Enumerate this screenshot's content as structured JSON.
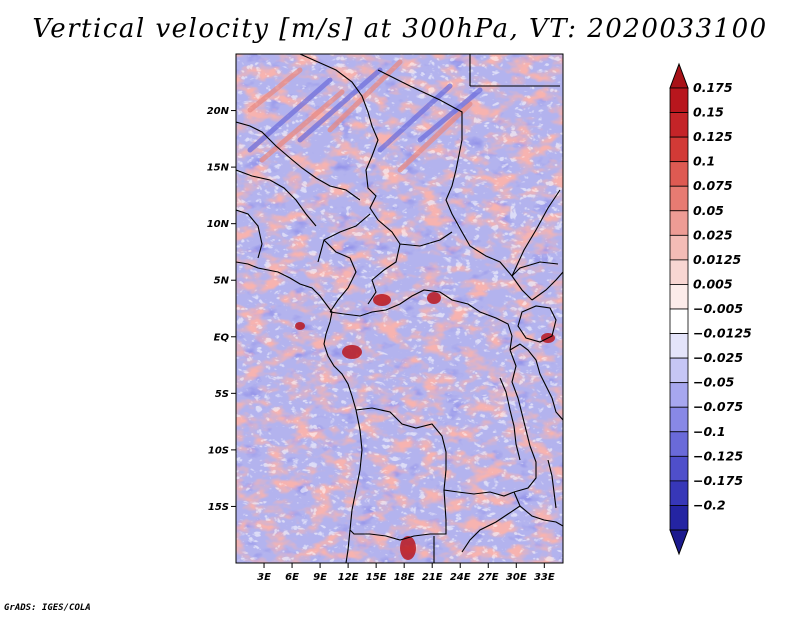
{
  "chart_data": {
    "type": "heatmap",
    "title": "Vertical velocity [m/s] at 300hPa, VT: 2020033100",
    "variable": "Vertical velocity",
    "units": "m/s",
    "level": "300hPa",
    "valid_time": "2020033100",
    "xlabel": "",
    "ylabel": "",
    "xlim": [
      0,
      35
    ],
    "ylim": [
      -20,
      25
    ],
    "x_ticks": [
      {
        "value": 3,
        "label": "3E"
      },
      {
        "value": 6,
        "label": "6E"
      },
      {
        "value": 9,
        "label": "9E"
      },
      {
        "value": 12,
        "label": "12E"
      },
      {
        "value": 15,
        "label": "15E"
      },
      {
        "value": 18,
        "label": "18E"
      },
      {
        "value": 21,
        "label": "21E"
      },
      {
        "value": 24,
        "label": "24E"
      },
      {
        "value": 27,
        "label": "27E"
      },
      {
        "value": 30,
        "label": "30E"
      },
      {
        "value": 33,
        "label": "33E"
      }
    ],
    "y_ticks": [
      {
        "value": 20,
        "label": "20N"
      },
      {
        "value": 15,
        "label": "15N"
      },
      {
        "value": 10,
        "label": "10N"
      },
      {
        "value": 5,
        "label": "5N"
      },
      {
        "value": 0,
        "label": "EQ"
      },
      {
        "value": -5,
        "label": "5S"
      },
      {
        "value": -10,
        "label": "10S"
      },
      {
        "value": -15,
        "label": "15S"
      }
    ],
    "colorbar": {
      "orientation": "vertical",
      "levels": [
        {
          "label": "0.175",
          "color": "#b8161d"
        },
        {
          "label": "0.15",
          "color": "#c42428"
        },
        {
          "label": "0.125",
          "color": "#d23a36"
        },
        {
          "label": "0.1",
          "color": "#de5a52"
        },
        {
          "label": "0.075",
          "color": "#e77b72"
        },
        {
          "label": "0.05",
          "color": "#ee9c95"
        },
        {
          "label": "0.025",
          "color": "#f4bcb6"
        },
        {
          "label": "0.0125",
          "color": "#f8d6d2"
        },
        {
          "label": "0.005",
          "color": "#fcecea"
        },
        {
          "label": "−0.005",
          "color": "#ffffff"
        },
        {
          "label": "−0.0125",
          "color": "#e4e4fa"
        },
        {
          "label": "−0.025",
          "color": "#c6c6f5"
        },
        {
          "label": "−0.05",
          "color": "#a7a7ef"
        },
        {
          "label": "−0.075",
          "color": "#8888e6"
        },
        {
          "label": "−0.1",
          "color": "#6a6ad9"
        },
        {
          "label": "−0.125",
          "color": "#4f4fcb"
        },
        {
          "label": "−0.175",
          "color": "#3737b8"
        },
        {
          "label": "−0.2",
          "color": "#2424a2"
        }
      ],
      "top_extend_color": "#a81218",
      "bottom_extend_color": "#1c1a8e"
    },
    "colors": {
      "background_field": "#b3b3ee",
      "positive_accent": "#e88a84",
      "negative_accent": "#6f6fdc"
    }
  },
  "footer": {
    "credit": "GrADS: IGES/COLA"
  }
}
